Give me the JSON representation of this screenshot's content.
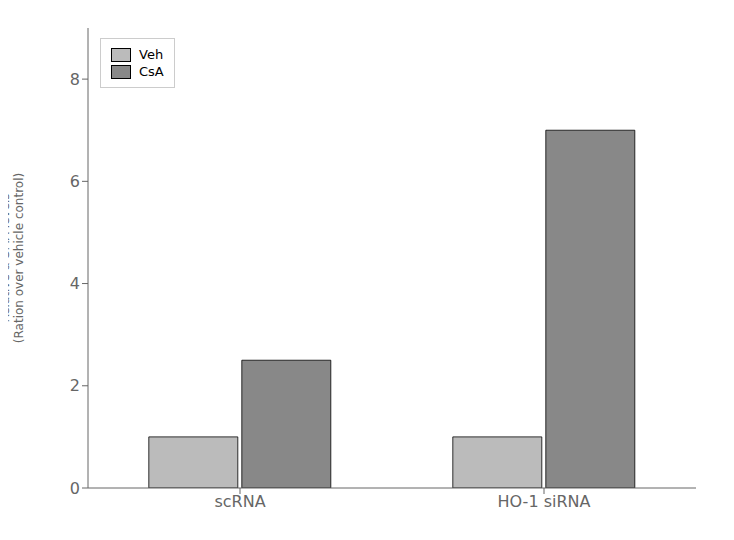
{
  "chart_data": {
    "type": "bar",
    "categories": [
      "scRNA",
      "HO-1 siRNA"
    ],
    "series": [
      {
        "name": "Veh",
        "color": "#bbbbbb",
        "values": [
          1.0,
          1.0
        ]
      },
      {
        "name": "CsA",
        "color": "#888888",
        "values": [
          2.5,
          7.0
        ]
      }
    ],
    "y_label": "Relative α-SMA levels\n(Ration over vehicle control)",
    "ylim": [
      0,
      9
    ],
    "yticks": [
      0,
      2,
      4,
      6,
      8
    ],
    "grid": false,
    "legend": "upper left"
  }
}
